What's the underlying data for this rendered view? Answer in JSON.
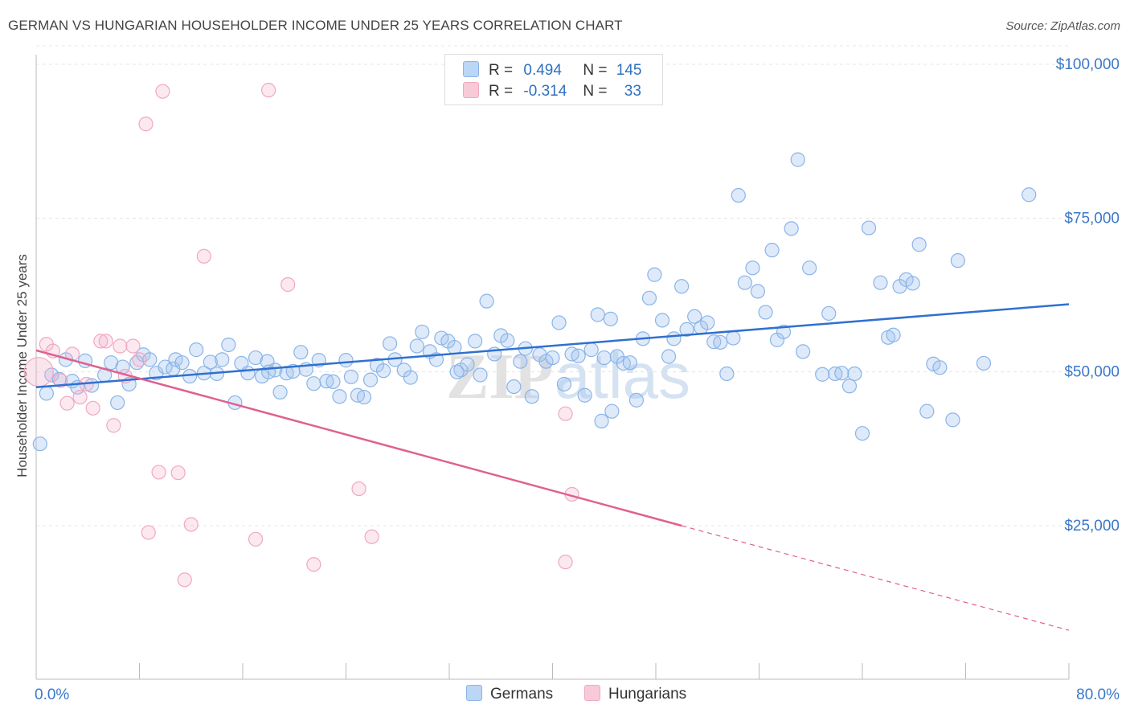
{
  "header": {
    "title": "GERMAN VS HUNGARIAN HOUSEHOLDER INCOME UNDER 25 YEARS CORRELATION CHART",
    "source": "Source: ZipAtlas.com"
  },
  "legend": {
    "r_label": "R =",
    "n_label": "N =",
    "germans": {
      "r": "0.494",
      "n": "145"
    },
    "hungarians": {
      "r": "-0.314",
      "n": "33"
    }
  },
  "watermark": {
    "zip": "ZIP",
    "atlas": "atlas"
  },
  "chart_data": {
    "type": "scatter",
    "ylabel": "Householder Income Under 25 years",
    "xlim": [
      0,
      80
    ],
    "ylim": [
      0,
      105000
    ],
    "x_tick_labels": [
      "0.0%",
      "80.0%"
    ],
    "y_ticks": [
      {
        "value": 25000,
        "label": "$25,000"
      },
      {
        "value": 50000,
        "label": "$50,000"
      },
      {
        "value": 75000,
        "label": "$75,000"
      },
      {
        "value": 100000,
        "label": "$100,000"
      }
    ],
    "series": [
      {
        "name": "Germans",
        "color": "#8ab4e8",
        "line_color": "#3070d0",
        "trend": {
          "x0": 0,
          "y0": 47500,
          "x1": 80,
          "y1": 61000
        },
        "points": [
          [
            0.3,
            38300
          ],
          [
            0.8,
            46500
          ],
          [
            1.2,
            49500
          ],
          [
            1.8,
            48800
          ],
          [
            2.3,
            52000
          ],
          [
            2.8,
            48500
          ],
          [
            3.2,
            47500
          ],
          [
            3.8,
            51800
          ],
          [
            4.3,
            47800
          ],
          [
            5.3,
            49500
          ],
          [
            5.8,
            51500
          ],
          [
            6.3,
            45000
          ],
          [
            6.7,
            50800
          ],
          [
            7.2,
            48000
          ],
          [
            7.8,
            51500
          ],
          [
            8.3,
            52800
          ],
          [
            8.8,
            52000
          ],
          [
            9.3,
            49800
          ],
          [
            10.0,
            50800
          ],
          [
            10.6,
            50500
          ],
          [
            10.8,
            52000
          ],
          [
            11.3,
            51500
          ],
          [
            11.9,
            49300
          ],
          [
            12.4,
            53600
          ],
          [
            13.0,
            49800
          ],
          [
            13.5,
            51600
          ],
          [
            14.0,
            49700
          ],
          [
            14.4,
            52000
          ],
          [
            14.9,
            54400
          ],
          [
            15.4,
            45000
          ],
          [
            15.9,
            51400
          ],
          [
            16.4,
            49800
          ],
          [
            17.0,
            52300
          ],
          [
            17.5,
            49300
          ],
          [
            17.9,
            51700
          ],
          [
            18.5,
            50300
          ],
          [
            18.9,
            46700
          ],
          [
            19.4,
            49800
          ],
          [
            19.9,
            50100
          ],
          [
            20.5,
            53200
          ],
          [
            20.9,
            50400
          ],
          [
            21.5,
            48100
          ],
          [
            21.9,
            51900
          ],
          [
            22.5,
            48500
          ],
          [
            23.0,
            48400
          ],
          [
            23.5,
            46000
          ],
          [
            24.0,
            51900
          ],
          [
            24.4,
            49200
          ],
          [
            24.9,
            46200
          ],
          [
            25.4,
            45900
          ],
          [
            25.9,
            48700
          ],
          [
            26.4,
            51100
          ],
          [
            26.9,
            50200
          ],
          [
            27.4,
            54600
          ],
          [
            27.8,
            52000
          ],
          [
            28.5,
            50300
          ],
          [
            29.0,
            49100
          ],
          [
            29.5,
            54200
          ],
          [
            29.9,
            56500
          ],
          [
            30.5,
            53300
          ],
          [
            31.0,
            52000
          ],
          [
            31.4,
            55500
          ],
          [
            31.9,
            55000
          ],
          [
            32.4,
            54000
          ],
          [
            32.9,
            50300
          ],
          [
            33.4,
            51200
          ],
          [
            34.0,
            55000
          ],
          [
            34.4,
            49500
          ],
          [
            34.9,
            61500
          ],
          [
            35.5,
            52900
          ],
          [
            36.0,
            55900
          ],
          [
            36.5,
            55100
          ],
          [
            37.0,
            47600
          ],
          [
            37.5,
            51700
          ],
          [
            37.9,
            53800
          ],
          [
            38.4,
            46000
          ],
          [
            39.0,
            52800
          ],
          [
            39.5,
            51700
          ],
          [
            40.0,
            52300
          ],
          [
            40.5,
            58000
          ],
          [
            40.9,
            48000
          ],
          [
            41.5,
            52900
          ],
          [
            42.0,
            52600
          ],
          [
            42.5,
            46200
          ],
          [
            43.0,
            53600
          ],
          [
            43.5,
            59300
          ],
          [
            44.0,
            52300
          ],
          [
            44.5,
            58600
          ],
          [
            45.0,
            52500
          ],
          [
            45.5,
            51400
          ],
          [
            46.0,
            51500
          ],
          [
            46.5,
            45400
          ],
          [
            47.0,
            55400
          ],
          [
            47.5,
            62000
          ],
          [
            47.9,
            65800
          ],
          [
            48.5,
            58400
          ],
          [
            49.0,
            52500
          ],
          [
            49.4,
            55400
          ],
          [
            50.0,
            63900
          ],
          [
            50.4,
            56900
          ],
          [
            51.0,
            59000
          ],
          [
            51.5,
            57200
          ],
          [
            52.0,
            58000
          ],
          [
            52.5,
            54900
          ],
          [
            53.0,
            54800
          ],
          [
            53.5,
            49700
          ],
          [
            54.0,
            55500
          ],
          [
            54.4,
            78700
          ],
          [
            54.9,
            64500
          ],
          [
            55.5,
            66900
          ],
          [
            55.9,
            63100
          ],
          [
            56.5,
            59700
          ],
          [
            57.0,
            69800
          ],
          [
            57.4,
            55200
          ],
          [
            57.9,
            56500
          ],
          [
            58.5,
            73300
          ],
          [
            59.0,
            84500
          ],
          [
            59.4,
            53300
          ],
          [
            59.9,
            66900
          ],
          [
            60.9,
            49600
          ],
          [
            61.4,
            59500
          ],
          [
            61.9,
            49700
          ],
          [
            62.4,
            49800
          ],
          [
            63.0,
            47700
          ],
          [
            63.4,
            49700
          ],
          [
            64.0,
            40000
          ],
          [
            64.5,
            73400
          ],
          [
            65.4,
            64500
          ],
          [
            66.0,
            55600
          ],
          [
            66.4,
            56000
          ],
          [
            66.9,
            63900
          ],
          [
            67.4,
            65000
          ],
          [
            67.9,
            64400
          ],
          [
            68.4,
            70700
          ],
          [
            69.0,
            43600
          ],
          [
            69.5,
            51300
          ],
          [
            70.0,
            50700
          ],
          [
            71.0,
            42200
          ],
          [
            71.4,
            68100
          ],
          [
            73.4,
            51400
          ],
          [
            76.9,
            78800
          ],
          [
            44.6,
            43600
          ],
          [
            32.6,
            50000
          ],
          [
            18.0,
            50000
          ],
          [
            43.8,
            42000
          ]
        ]
      },
      {
        "name": "Hungarians",
        "color": "#f0a8c0",
        "line_color": "#e06090",
        "trend": {
          "x0": 0,
          "y0": 53500,
          "x1": 50,
          "y1": 25000,
          "dash_x1": 80,
          "dash_y1": 8000
        },
        "points": [
          [
            0.2,
            50000
          ],
          [
            0.8,
            54500
          ],
          [
            1.3,
            53400
          ],
          [
            1.9,
            48600
          ],
          [
            2.4,
            44900
          ],
          [
            2.8,
            52900
          ],
          [
            3.4,
            45900
          ],
          [
            3.9,
            48000
          ],
          [
            4.4,
            44100
          ],
          [
            5.0,
            55000
          ],
          [
            5.4,
            55000
          ],
          [
            6.0,
            41300
          ],
          [
            6.5,
            54200
          ],
          [
            6.9,
            49300
          ],
          [
            7.5,
            54200
          ],
          [
            8.0,
            52000
          ],
          [
            8.5,
            90300
          ],
          [
            8.7,
            23900
          ],
          [
            9.5,
            33700
          ],
          [
            9.8,
            95600
          ],
          [
            11.0,
            33600
          ],
          [
            11.5,
            16200
          ],
          [
            12.0,
            25200
          ],
          [
            13.0,
            68800
          ],
          [
            17.0,
            22800
          ],
          [
            18.0,
            95800
          ],
          [
            19.5,
            64200
          ],
          [
            21.5,
            18700
          ],
          [
            25.0,
            31000
          ],
          [
            26.0,
            23200
          ],
          [
            41.0,
            19100
          ],
          [
            41.5,
            30100
          ],
          [
            41.0,
            43200
          ]
        ]
      }
    ]
  },
  "bottom_legend": {
    "germans": "Germans",
    "hungarians": "Hungarians"
  }
}
